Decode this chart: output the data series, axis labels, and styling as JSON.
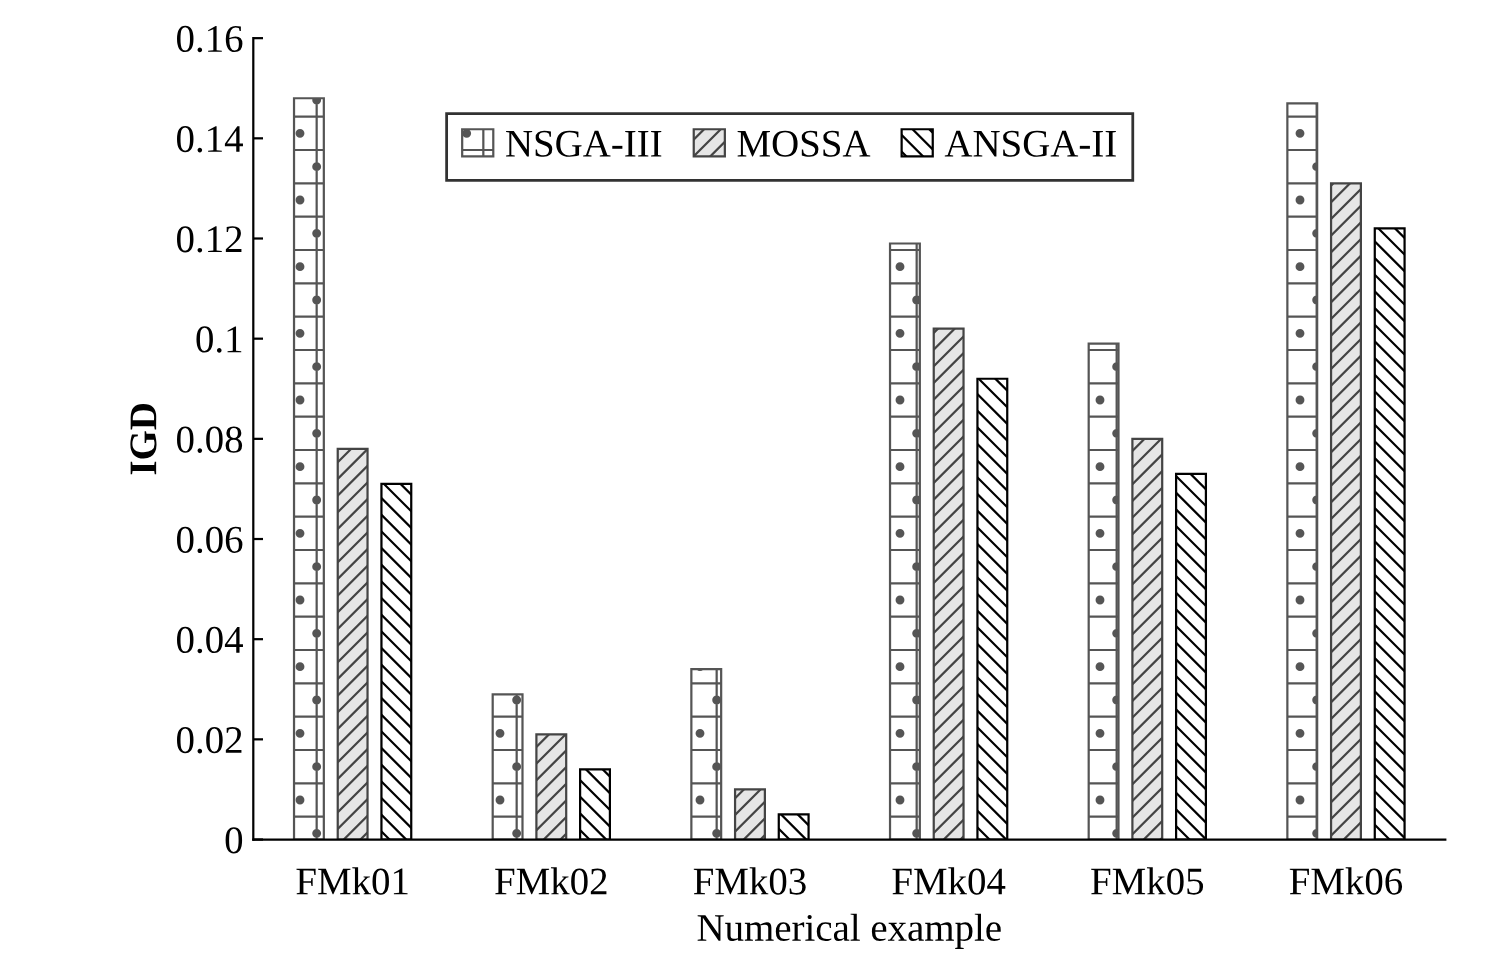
{
  "chart_data": {
    "type": "bar",
    "xlabel": "Numerical example",
    "ylabel": "IGD",
    "categories": [
      "FMk01",
      "FMk02",
      "FMk03",
      "FMk04",
      "FMk05",
      "FMk06"
    ],
    "series": [
      {
        "name": "NSGA-III",
        "color": "#555555",
        "values": [
          0.148,
          0.029,
          0.034,
          0.119,
          0.099,
          0.147
        ]
      },
      {
        "name": "MOSSA",
        "color": "#444444",
        "values": [
          0.078,
          0.021,
          0.01,
          0.102,
          0.08,
          0.131
        ]
      },
      {
        "name": "ANSGA-II",
        "color": "#000000",
        "values": [
          0.071,
          0.014,
          0.005,
          0.092,
          0.073,
          0.122
        ]
      }
    ],
    "ylim": [
      0,
      0.16
    ],
    "yticks": [
      0,
      0.02,
      0.04,
      0.06,
      0.08,
      0.1,
      0.12,
      0.14,
      0.16
    ],
    "legend": "top",
    "grid": false
  }
}
